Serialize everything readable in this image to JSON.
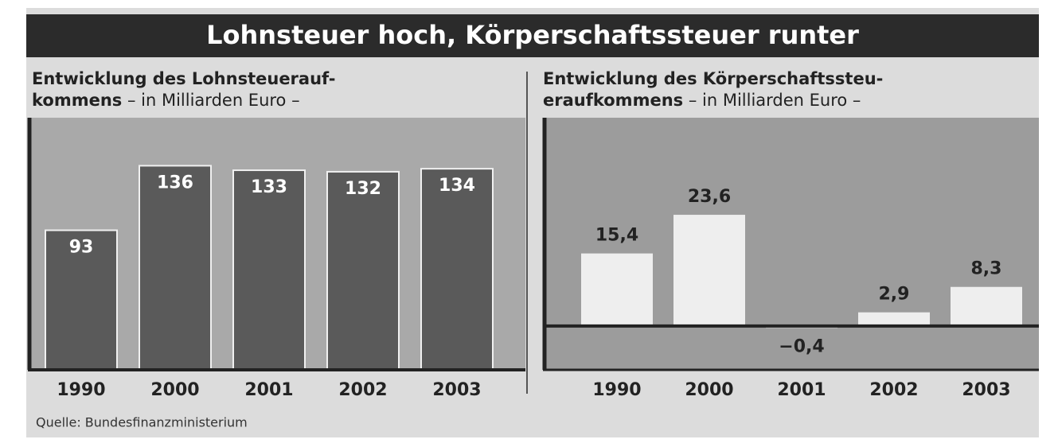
{
  "header": {
    "title": "Lohnsteuer hoch, Körperschaftssteuer runter"
  },
  "source": "Quelle: Bundesfinanzministerium",
  "chart_data": [
    {
      "type": "bar",
      "title": "Entwicklung des Lohnsteuerauf-\nkommens",
      "subtitle": "– in Milliarden Euro –",
      "categories": [
        "1990",
        "2000",
        "2001",
        "2002",
        "2003"
      ],
      "values": [
        93,
        136,
        133,
        132,
        134
      ],
      "color": "#5a5a5a",
      "ylim": [
        0,
        168
      ]
    },
    {
      "type": "bar",
      "title": "Entwicklung des Körperschaftssteu-\neraufkommens",
      "subtitle": "– in Milliarden Euro –",
      "categories": [
        "1990",
        "2000",
        "2001",
        "2002",
        "2003"
      ],
      "values": [
        15.4,
        23.6,
        -0.4,
        2.9,
        8.3
      ],
      "value_labels": [
        "15,4",
        "23,6",
        "−0,4",
        "2,9",
        "8,3"
      ],
      "color": "#eeeeee",
      "ylim": [
        -9.3,
        44.2
      ]
    }
  ]
}
